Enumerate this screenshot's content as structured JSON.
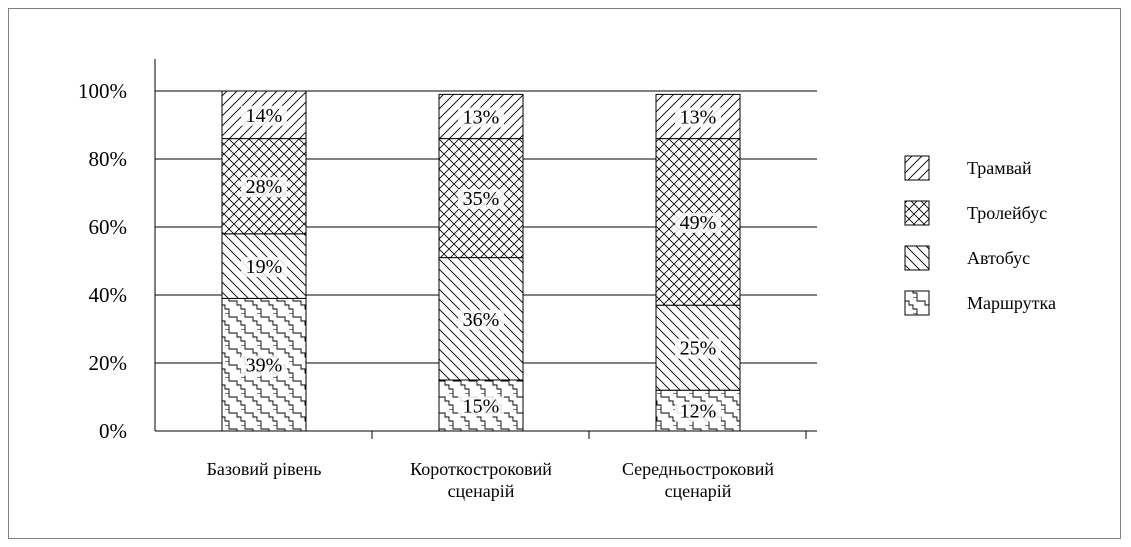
{
  "chart_data": {
    "type": "bar",
    "stacked": true,
    "percent": true,
    "title": "",
    "xlabel": "",
    "ylabel": "",
    "ylim": [
      0,
      100
    ],
    "grid": true,
    "y_ticks": [
      "0%",
      "20%",
      "40%",
      "60%",
      "80%",
      "100%"
    ],
    "categories": [
      [
        "Базовий рівень"
      ],
      [
        "Короткостроковий",
        "сценарій"
      ],
      [
        "Середньостроковий",
        "сценарій"
      ]
    ],
    "series": [
      {
        "name": "Маршрутка",
        "pattern": "stairs",
        "values": [
          39,
          15,
          12
        ],
        "labels": [
          "39%",
          "15%",
          "12%"
        ]
      },
      {
        "name": "Автобус",
        "pattern": "back-diagonal",
        "values": [
          19,
          36,
          25
        ],
        "labels": [
          "19%",
          "36%",
          "25%"
        ]
      },
      {
        "name": "Тролейбус",
        "pattern": "crosshatch",
        "values": [
          28,
          35,
          49
        ],
        "labels": [
          "28%",
          "35%",
          "49%"
        ]
      },
      {
        "name": "Трамвай",
        "pattern": "forward-diagonal",
        "values": [
          14,
          13,
          13
        ],
        "labels": [
          "14%",
          "13%",
          "13%"
        ]
      }
    ],
    "legend": {
      "position": "right",
      "order": [
        "Трамвай",
        "Тролейбус",
        "Автобус",
        "Маршрутка"
      ]
    }
  }
}
